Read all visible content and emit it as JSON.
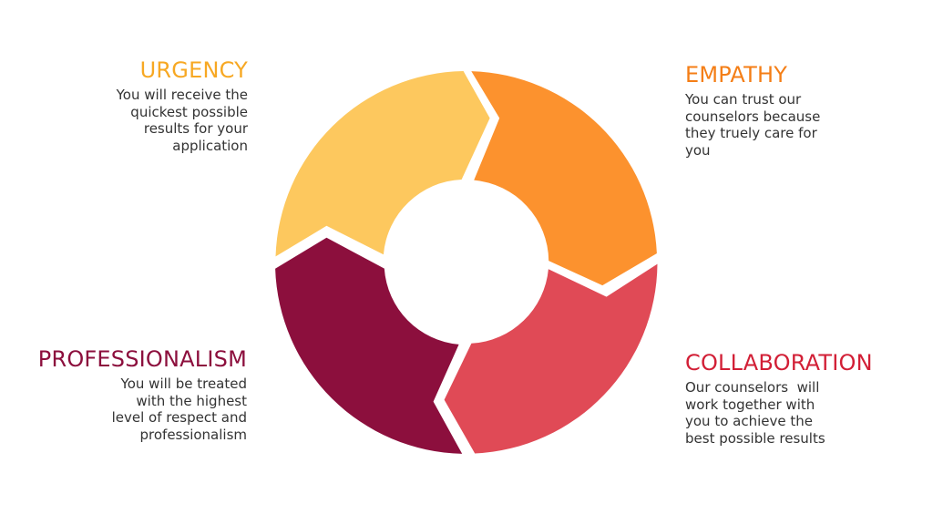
{
  "colors": {
    "urgency": "#FDC85E",
    "empathy": "#FC922E",
    "collaboration": "#E04A56",
    "professionalism": "#8C0F3D",
    "body_text": "#333333"
  },
  "urgency": {
    "title": "URGENCY",
    "title_color": "#F7A823",
    "lines": [
      "You will receive the",
      "quickest possible",
      "results for your",
      "application"
    ]
  },
  "empathy": {
    "title": "EMPATHY",
    "title_color": "#F47E16",
    "lines": [
      "You can trust our",
      "counselors because",
      "they truely care for",
      "you"
    ]
  },
  "professionalism": {
    "title": "PROFESSIONALISM",
    "title_color": "#8C0F3D",
    "lines": [
      "You will be treated",
      "with the highest",
      "level of respect and",
      "professionalism"
    ]
  },
  "collaboration": {
    "title": "COLLABORATION",
    "title_color": "#D21F36",
    "lines": [
      "Our counselors  will",
      "work together with",
      "you to achieve the",
      "best possible results"
    ]
  }
}
